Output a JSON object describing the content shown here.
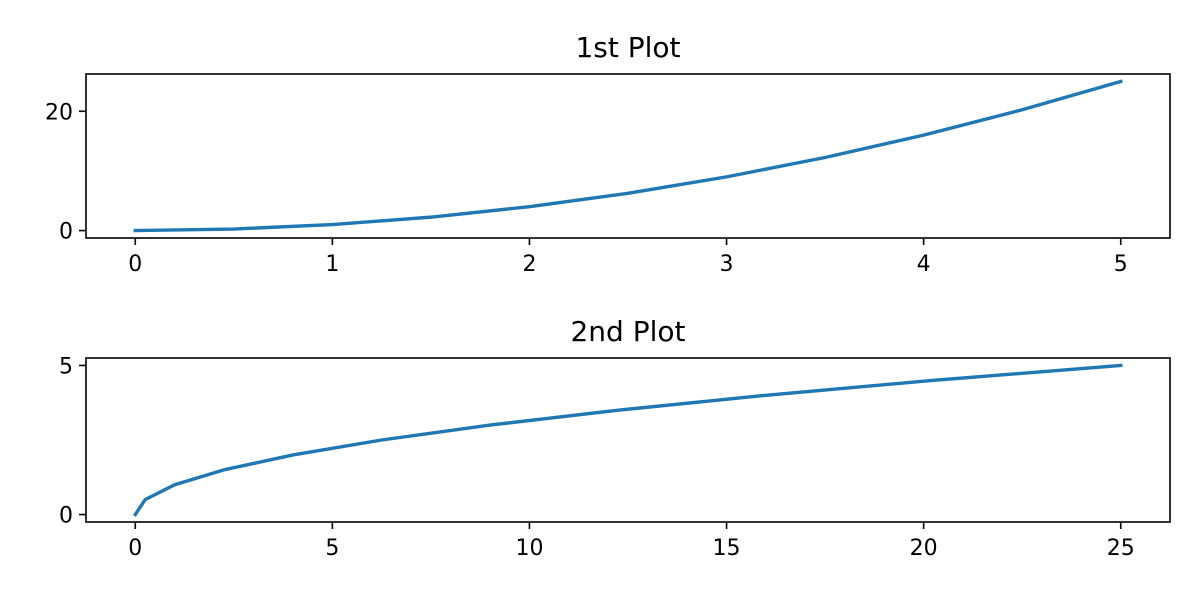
{
  "chart_data": [
    {
      "type": "line",
      "title": "1st Plot",
      "xlabel": "",
      "ylabel": "",
      "grid": false,
      "x": [
        0,
        0.5,
        1,
        1.5,
        2,
        2.5,
        3,
        3.5,
        4,
        4.5,
        5
      ],
      "series": [
        {
          "values": [
            0,
            0.25,
            1,
            2.25,
            4,
            6.25,
            9,
            12.25,
            16,
            20.25,
            25
          ],
          "color": "#1f77b4"
        }
      ],
      "xlim": [
        -0.25,
        5.25
      ],
      "ylim": [
        -1.25,
        26.25
      ],
      "xticks": [
        0,
        1,
        2,
        3,
        4,
        5
      ],
      "yticks": [
        0,
        20
      ]
    },
    {
      "type": "line",
      "title": "2nd Plot",
      "xlabel": "",
      "ylabel": "",
      "grid": false,
      "x": [
        0,
        0.25,
        1,
        2.25,
        4,
        6.25,
        9,
        12.25,
        16,
        20.25,
        25
      ],
      "series": [
        {
          "values": [
            0,
            0.5,
            1,
            1.5,
            2,
            2.5,
            3,
            3.5,
            4,
            4.5,
            5
          ],
          "color": "#1f77b4"
        }
      ],
      "xlim": [
        -1.25,
        26.25
      ],
      "ylim": [
        -0.25,
        5.25
      ],
      "xticks": [
        0,
        5,
        10,
        15,
        20,
        25
      ],
      "yticks": [
        0,
        5
      ]
    }
  ]
}
